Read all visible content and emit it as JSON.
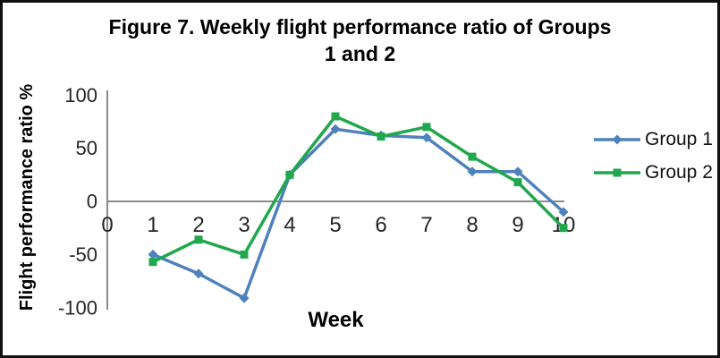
{
  "chart_data": {
    "type": "line",
    "title": "Figure 7. Weekly flight performance ratio of Groups 1 and 2",
    "title_lines": [
      "Figure 7. Weekly flight performance ratio of Groups",
      "1 and 2"
    ],
    "xlabel": "Week",
    "ylabel": "Flight performance ratio %",
    "x": [
      1,
      2,
      3,
      4,
      5,
      6,
      7,
      8,
      9,
      10
    ],
    "x_ticks": [
      0,
      1,
      2,
      3,
      4,
      5,
      6,
      7,
      8,
      9,
      10
    ],
    "y_ticks": [
      100,
      50,
      0,
      -50,
      -100
    ],
    "xlim": [
      0,
      10
    ],
    "ylim": [
      -100,
      100
    ],
    "grid": false,
    "legend_position": "right",
    "axis_color": "#8c8c8c",
    "tick_color": "#262626",
    "series": [
      {
        "name": "Group 1",
        "marker": "diamond",
        "color": "#4f81bd",
        "values": [
          -50,
          -68,
          -91,
          25,
          68,
          62,
          60,
          28,
          28,
          -10
        ]
      },
      {
        "name": "Group 2",
        "marker": "square",
        "color": "#21a74d",
        "values": [
          -57,
          -36,
          -50,
          25,
          80,
          61,
          70,
          42,
          18,
          -25
        ]
      }
    ]
  }
}
